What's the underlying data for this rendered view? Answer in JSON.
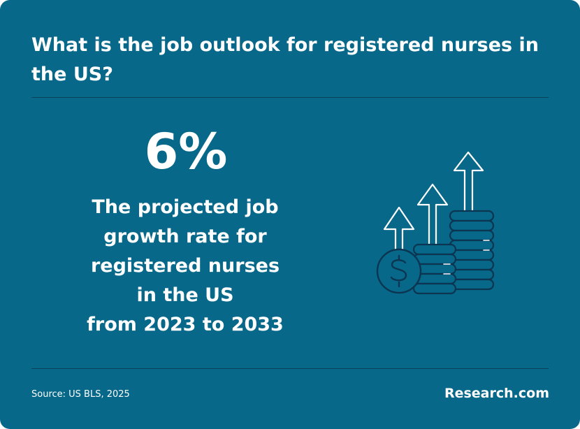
{
  "header": {
    "title": "What is the job outlook for registered nurses in the US?"
  },
  "stat": {
    "value": "6%",
    "description_lines": [
      "The projected job",
      "growth rate for",
      "registered nurses",
      "in the US",
      "from 2023 to 2033"
    ]
  },
  "illustration": {
    "icon": "growth-coins-arrows-icon"
  },
  "footer": {
    "source": "Source: US BLS, 2025",
    "brand": "Research.com"
  },
  "colors": {
    "background": "#07688a",
    "text": "#ffffff",
    "divider": "#0b4159",
    "icon_fill": "#07688a",
    "icon_stroke_dark": "#0b3550",
    "icon_stroke_light": "#ffffff"
  }
}
